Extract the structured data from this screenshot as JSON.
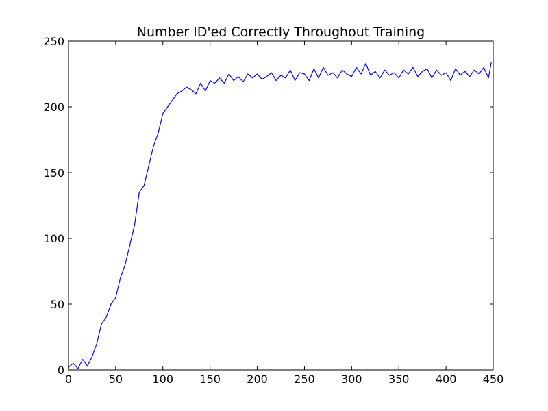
{
  "chart_data": {
    "type": "line",
    "title": "Number ID'ed Correctly Throughout Training",
    "xlabel": "",
    "ylabel": "",
    "xlim": [
      0,
      450
    ],
    "ylim": [
      0,
      250
    ],
    "xticks": [
      0,
      50,
      100,
      150,
      200,
      250,
      300,
      350,
      400,
      450
    ],
    "yticks": [
      0,
      50,
      100,
      150,
      200,
      250
    ],
    "grid": false,
    "legend": "none",
    "series": [
      {
        "color": "#0000ff",
        "x": [
          0,
          5,
          10,
          15,
          20,
          25,
          30,
          35,
          40,
          45,
          50,
          55,
          60,
          65,
          70,
          75,
          80,
          85,
          90,
          95,
          100,
          105,
          110,
          115,
          120,
          125,
          130,
          135,
          140,
          145,
          150,
          155,
          160,
          165,
          170,
          175,
          180,
          185,
          190,
          195,
          200,
          205,
          210,
          215,
          220,
          225,
          230,
          235,
          240,
          245,
          250,
          255,
          260,
          265,
          270,
          275,
          280,
          285,
          290,
          295,
          300,
          305,
          310,
          315,
          320,
          325,
          330,
          335,
          340,
          345,
          350,
          355,
          360,
          365,
          370,
          375,
          380,
          385,
          390,
          395,
          400,
          405,
          410,
          415,
          420,
          425,
          430,
          435,
          440,
          445,
          448
        ],
        "y": [
          2,
          5,
          1,
          8,
          3,
          10,
          20,
          35,
          40,
          50,
          55,
          70,
          80,
          95,
          110,
          135,
          140,
          155,
          170,
          180,
          195,
          200,
          205,
          210,
          212,
          215,
          213,
          210,
          218,
          212,
          220,
          218,
          222,
          218,
          225,
          220,
          223,
          219,
          225,
          222,
          225,
          221,
          223,
          226,
          220,
          224,
          222,
          228,
          220,
          226,
          225,
          220,
          229,
          222,
          230,
          224,
          226,
          222,
          228,
          225,
          223,
          230,
          225,
          233,
          224,
          227,
          222,
          228,
          224,
          226,
          222,
          228,
          225,
          230,
          223,
          227,
          229,
          222,
          228,
          224,
          226,
          220,
          229,
          224,
          227,
          223,
          228,
          225,
          230,
          222,
          234
        ]
      }
    ]
  }
}
